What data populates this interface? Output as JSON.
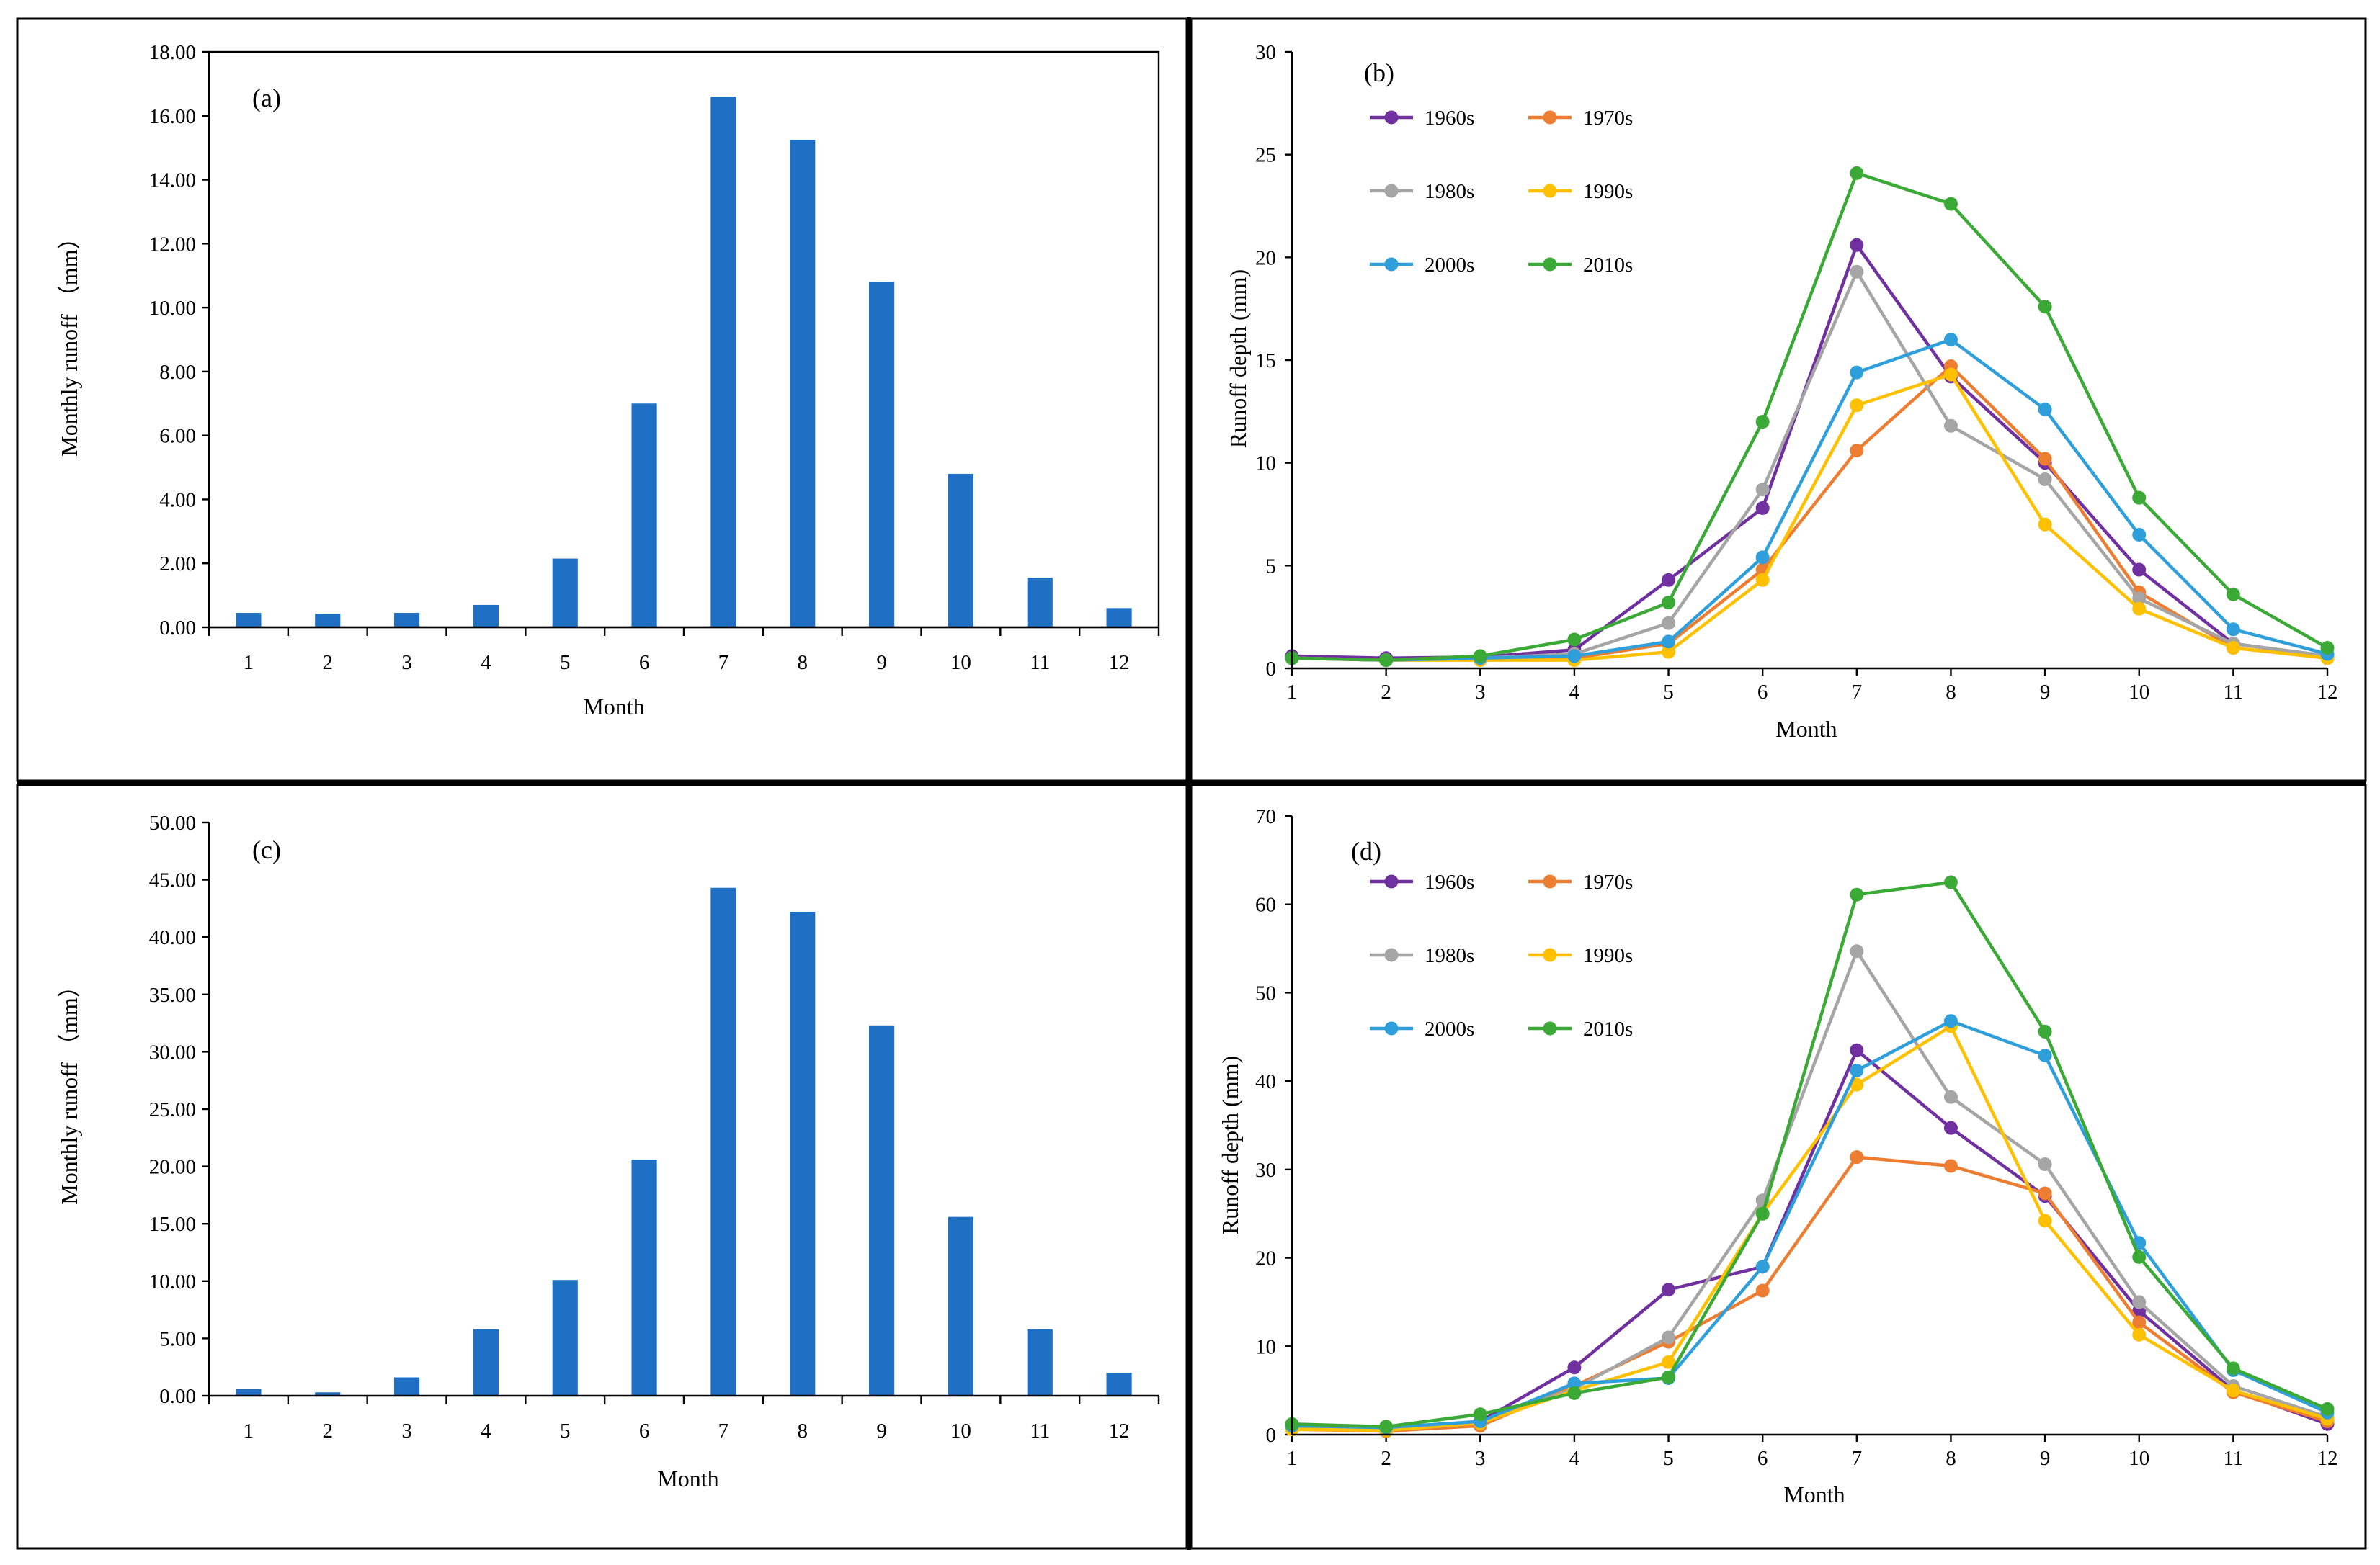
{
  "colors": {
    "bar": "#1f6fc5",
    "1960s": "#7030a0",
    "1970s": "#ed7d31",
    "1980s": "#a5a5a5",
    "1990s": "#ffc000",
    "2000s": "#2e9fdb",
    "2010s": "#3aa935"
  },
  "chart_data": [
    {
      "id": "a",
      "type": "bar",
      "label": "(a)",
      "xlabel": "Month",
      "ylabel": "Monthly runoff （mm）",
      "categories": [
        "1",
        "2",
        "3",
        "4",
        "5",
        "6",
        "7",
        "8",
        "9",
        "10",
        "11",
        "12"
      ],
      "values": [
        0.45,
        0.42,
        0.45,
        0.7,
        2.15,
        7.0,
        16.6,
        15.25,
        10.8,
        4.8,
        1.55,
        0.6
      ],
      "ylim": [
        0,
        18
      ],
      "yticks": [
        "0.00",
        "2.00",
        "4.00",
        "6.00",
        "8.00",
        "10.00",
        "12.00",
        "14.00",
        "16.00",
        "18.00"
      ]
    },
    {
      "id": "b",
      "type": "line",
      "label": "(b)",
      "xlabel": "Month",
      "ylabel": "Runoff depth (mm)",
      "x": [
        "1",
        "2",
        "3",
        "4",
        "5",
        "6",
        "7",
        "8",
        "9",
        "10",
        "11",
        "12"
      ],
      "ylim": [
        0,
        30
      ],
      "yticks": [
        "0",
        "5",
        "10",
        "15",
        "20",
        "25",
        "30"
      ],
      "series": [
        {
          "name": "1960s",
          "values": [
            0.6,
            0.5,
            0.55,
            0.9,
            4.3,
            7.8,
            20.6,
            14.2,
            10.0,
            4.8,
            1.2,
            0.6
          ]
        },
        {
          "name": "1970s",
          "values": [
            0.5,
            0.4,
            0.5,
            0.5,
            1.2,
            4.8,
            10.6,
            14.7,
            10.2,
            3.7,
            1.0,
            0.5
          ]
        },
        {
          "name": "1980s",
          "values": [
            0.5,
            0.4,
            0.5,
            0.7,
            2.2,
            8.7,
            19.3,
            11.8,
            9.2,
            3.4,
            1.2,
            0.6
          ]
        },
        {
          "name": "1990s",
          "values": [
            0.5,
            0.4,
            0.4,
            0.4,
            0.8,
            4.3,
            12.8,
            14.3,
            7.0,
            2.9,
            1.0,
            0.5
          ]
        },
        {
          "name": "2000s",
          "values": [
            0.5,
            0.4,
            0.5,
            0.6,
            1.3,
            5.4,
            14.4,
            16.0,
            12.6,
            6.5,
            1.9,
            0.7
          ]
        },
        {
          "name": "2010s",
          "values": [
            0.5,
            0.4,
            0.6,
            1.4,
            3.2,
            12.0,
            24.1,
            22.6,
            17.6,
            8.3,
            3.6,
            1.0
          ]
        }
      ]
    },
    {
      "id": "c",
      "type": "bar",
      "label": "(c)",
      "xlabel": "Month",
      "ylabel": "Monthly runoff （mm）",
      "categories": [
        "1",
        "2",
        "3",
        "4",
        "5",
        "6",
        "7",
        "8",
        "9",
        "10",
        "11",
        "12"
      ],
      "values": [
        0.6,
        0.3,
        1.6,
        5.8,
        10.1,
        20.6,
        44.3,
        42.2,
        32.3,
        15.6,
        5.8,
        2.0
      ],
      "ylim": [
        0,
        50
      ],
      "yticks": [
        "0.00",
        "5.00",
        "10.00",
        "15.00",
        "20.00",
        "25.00",
        "30.00",
        "35.00",
        "40.00",
        "45.00",
        "50.00"
      ]
    },
    {
      "id": "d",
      "type": "line",
      "label": "(d)",
      "xlabel": "Month",
      "ylabel": "Runoff depth (mm)",
      "x": [
        "1",
        "2",
        "3",
        "4",
        "5",
        "6",
        "7",
        "8",
        "9",
        "10",
        "11",
        "12"
      ],
      "ylim": [
        0,
        70
      ],
      "yticks": [
        "0",
        "10",
        "20",
        "30",
        "40",
        "50",
        "60",
        "70"
      ],
      "series": [
        {
          "name": "1960s",
          "values": [
            0.8,
            0.6,
            1.5,
            7.6,
            16.4,
            19.0,
            43.5,
            34.7,
            27.0,
            14.0,
            5.0,
            1.2
          ]
        },
        {
          "name": "1970s",
          "values": [
            0.6,
            0.4,
            1.0,
            5.5,
            10.5,
            16.3,
            31.4,
            30.4,
            27.3,
            12.7,
            4.8,
            1.5
          ]
        },
        {
          "name": "1980s",
          "values": [
            0.8,
            0.6,
            1.5,
            5.2,
            11.0,
            26.5,
            54.7,
            38.2,
            30.6,
            15.0,
            5.5,
            2.0
          ]
        },
        {
          "name": "1990s",
          "values": [
            0.6,
            0.5,
            1.3,
            5.0,
            8.2,
            25.0,
            39.6,
            46.2,
            24.2,
            11.3,
            5.0,
            1.8
          ]
        },
        {
          "name": "2000s",
          "values": [
            1.0,
            0.8,
            1.5,
            5.8,
            6.4,
            19.0,
            41.2,
            46.8,
            42.9,
            21.7,
            7.3,
            2.5
          ]
        },
        {
          "name": "2010s",
          "values": [
            1.2,
            0.9,
            2.3,
            4.7,
            6.5,
            25.0,
            61.1,
            62.5,
            45.6,
            20.1,
            7.5,
            2.9
          ]
        }
      ]
    }
  ]
}
